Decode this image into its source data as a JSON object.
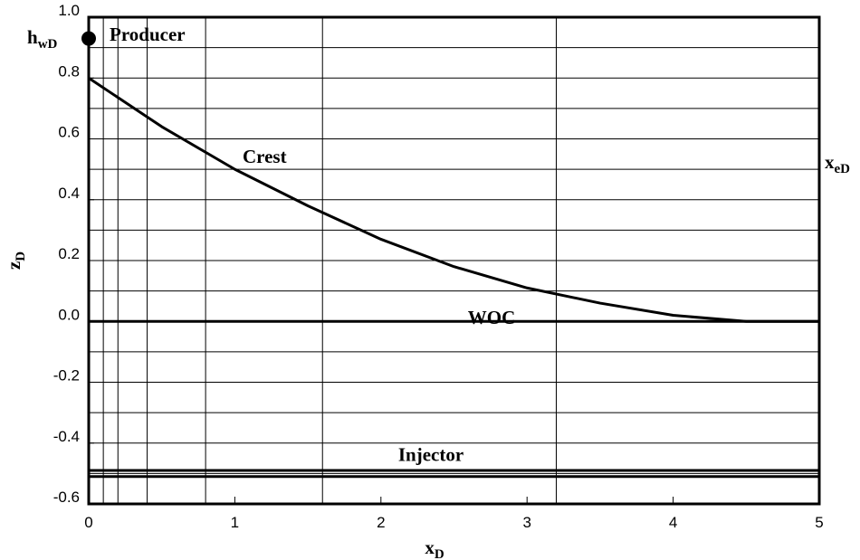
{
  "chart_data": {
    "type": "line",
    "xlabel": {
      "base": "x",
      "sub": "D"
    },
    "ylabel": {
      "base": "z",
      "sub": "D"
    },
    "xlim": [
      0,
      5
    ],
    "ylim": [
      -0.6,
      1.0
    ],
    "xticks": [
      0,
      1,
      2,
      3,
      4,
      5
    ],
    "yticks": [
      {
        "value": 1.0,
        "label": "1.0"
      },
      0.8,
      0.6,
      0.4,
      0.2,
      {
        "value": 0.0,
        "label": "0.0"
      },
      -0.2,
      -0.4,
      -0.6
    ],
    "xgrid": [
      0.1,
      0.2,
      0.4,
      0.8,
      1.6,
      3.2
    ],
    "ygrid": [
      0.9,
      0.8,
      0.7,
      0.6,
      0.5,
      0.4,
      0.3,
      0.2,
      0.1,
      -0.1,
      -0.2,
      -0.3,
      -0.4,
      -0.5
    ],
    "series": [
      {
        "name": "Crest",
        "color": "#000000",
        "x": [
          0,
          0.5,
          1,
          1.5,
          2,
          2.5,
          3,
          3.5,
          4,
          4.5,
          4.8,
          5
        ],
        "values": [
          0.8,
          0.64,
          0.5,
          0.38,
          0.27,
          0.18,
          0.11,
          0.06,
          0.02,
          0.0,
          0,
          0
        ]
      }
    ],
    "hlines": [
      {
        "name": "WOC",
        "values": [
          0
        ]
      },
      {
        "name": "Injector",
        "values": [
          -0.49,
          -0.51
        ]
      }
    ],
    "producer": {
      "name": "Producer",
      "label": {
        "base": "h",
        "sub": "wD"
      },
      "x": 0,
      "y": 0.93
    },
    "boundary_label": {
      "base": "x",
      "sub": "eD"
    }
  }
}
